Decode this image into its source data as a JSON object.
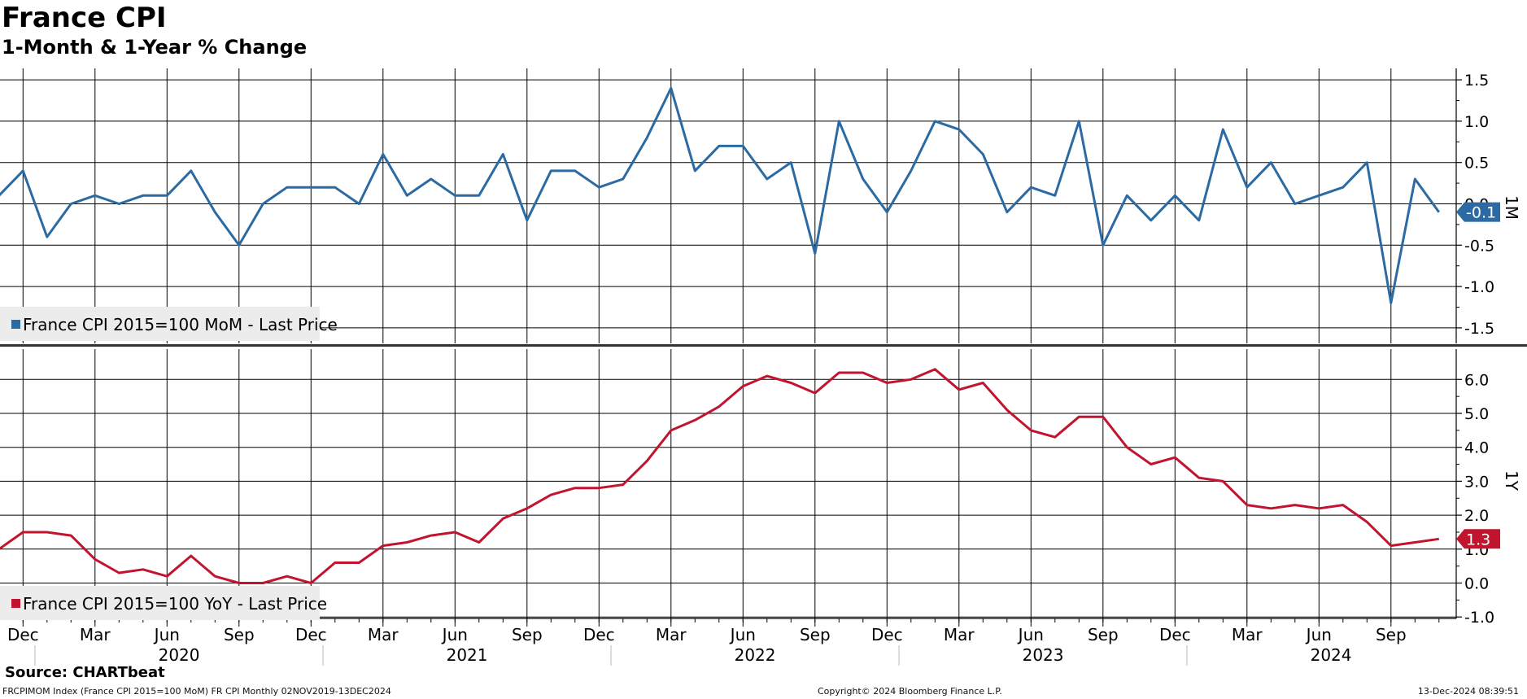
{
  "header": {
    "title": "France CPI",
    "subtitle": "1-Month & 1-Year % Change"
  },
  "footer": {
    "source": "Source: CHARTbeat",
    "ticker_info": "FRCPIMOM Index (France CPI 2015=100 MoM) FR CPI  Monthly 02NOV2019-13DEC2024",
    "copyright": "Copyright© 2024 Bloomberg Finance L.P.",
    "timestamp": "13-Dec-2024 08:39:51"
  },
  "colors": {
    "mom": "#2b6aa3",
    "yoy": "#c1152f"
  },
  "chart_data": [
    {
      "type": "line",
      "panel": "top",
      "axis_title": "1M",
      "ylim": [
        -1.75,
        1.75
      ],
      "yticks": [
        "1.5",
        "1.0",
        "0.5",
        "0.0",
        "-0.5",
        "-1.0",
        "-1.5"
      ],
      "last_value_label": "-0.1",
      "series": [
        {
          "name": "France CPI 2015=100 MoM - Last Price",
          "x": [
            "2019-11",
            "2019-12",
            "2020-01",
            "2020-02",
            "2020-03",
            "2020-04",
            "2020-05",
            "2020-06",
            "2020-07",
            "2020-08",
            "2020-09",
            "2020-10",
            "2020-11",
            "2020-12",
            "2021-01",
            "2021-02",
            "2021-03",
            "2021-04",
            "2021-05",
            "2021-06",
            "2021-07",
            "2021-08",
            "2021-09",
            "2021-10",
            "2021-11",
            "2021-12",
            "2022-01",
            "2022-02",
            "2022-03",
            "2022-04",
            "2022-05",
            "2022-06",
            "2022-07",
            "2022-08",
            "2022-09",
            "2022-10",
            "2022-11",
            "2022-12",
            "2023-01",
            "2023-02",
            "2023-03",
            "2023-04",
            "2023-05",
            "2023-06",
            "2023-07",
            "2023-08",
            "2023-09",
            "2023-10",
            "2023-11",
            "2023-12",
            "2024-01",
            "2024-02",
            "2024-03",
            "2024-04",
            "2024-05",
            "2024-06",
            "2024-07",
            "2024-08",
            "2024-09",
            "2024-10",
            "2024-11"
          ],
          "values": [
            0.1,
            0.4,
            -0.4,
            0.0,
            0.1,
            0.0,
            0.1,
            0.1,
            0.4,
            -0.1,
            -0.5,
            0.0,
            0.2,
            0.2,
            0.2,
            0.0,
            0.6,
            0.1,
            0.3,
            0.1,
            0.1,
            0.6,
            -0.2,
            0.4,
            0.4,
            0.2,
            0.3,
            0.8,
            1.4,
            0.4,
            0.7,
            0.7,
            0.3,
            0.5,
            -0.6,
            1.0,
            0.3,
            -0.1,
            0.4,
            1.0,
            0.9,
            0.6,
            -0.1,
            0.2,
            0.1,
            1.0,
            -0.5,
            0.1,
            -0.2,
            0.1,
            -0.2,
            0.9,
            0.2,
            0.5,
            0.0,
            0.1,
            0.2,
            0.5,
            -1.2,
            0.3,
            -0.1
          ]
        }
      ]
    },
    {
      "type": "line",
      "panel": "bottom",
      "axis_title": "1Y",
      "ylim": [
        -1.3,
        7.0
      ],
      "yticks": [
        "6.0",
        "5.0",
        "4.0",
        "3.0",
        "2.0",
        "1.0",
        "0.0",
        "-1.0"
      ],
      "last_value_label": "1.3",
      "series": [
        {
          "name": "France CPI 2015=100 YoY - Last Price",
          "x": [
            "2019-11",
            "2019-12",
            "2020-01",
            "2020-02",
            "2020-03",
            "2020-04",
            "2020-05",
            "2020-06",
            "2020-07",
            "2020-08",
            "2020-09",
            "2020-10",
            "2020-11",
            "2020-12",
            "2021-01",
            "2021-02",
            "2021-03",
            "2021-04",
            "2021-05",
            "2021-06",
            "2021-07",
            "2021-08",
            "2021-09",
            "2021-10",
            "2021-11",
            "2021-12",
            "2022-01",
            "2022-02",
            "2022-03",
            "2022-04",
            "2022-05",
            "2022-06",
            "2022-07",
            "2022-08",
            "2022-09",
            "2022-10",
            "2022-11",
            "2022-12",
            "2023-01",
            "2023-02",
            "2023-03",
            "2023-04",
            "2023-05",
            "2023-06",
            "2023-07",
            "2023-08",
            "2023-09",
            "2023-10",
            "2023-11",
            "2023-12",
            "2024-01",
            "2024-02",
            "2024-03",
            "2024-04",
            "2024-05",
            "2024-06",
            "2024-07",
            "2024-08",
            "2024-09",
            "2024-10",
            "2024-11"
          ],
          "values": [
            1.0,
            1.5,
            1.5,
            1.4,
            0.7,
            0.3,
            0.4,
            0.2,
            0.8,
            0.2,
            0.0,
            0.0,
            0.2,
            0.0,
            0.6,
            0.6,
            1.1,
            1.2,
            1.4,
            1.5,
            1.2,
            1.9,
            2.2,
            2.6,
            2.8,
            2.8,
            2.9,
            3.6,
            4.5,
            4.8,
            5.2,
            5.8,
            6.1,
            5.9,
            5.6,
            6.2,
            6.2,
            5.9,
            6.0,
            6.3,
            5.7,
            5.9,
            5.1,
            4.5,
            4.3,
            4.9,
            4.9,
            4.0,
            3.5,
            3.7,
            3.1,
            3.0,
            2.3,
            2.2,
            2.3,
            2.2,
            2.3,
            1.8,
            1.1,
            1.2,
            1.3
          ]
        }
      ]
    }
  ],
  "x_axis": {
    "months": [
      {
        "label": "Dec",
        "date": "2019-12"
      },
      {
        "label": "Mar",
        "date": "2020-03"
      },
      {
        "label": "Jun",
        "date": "2020-06"
      },
      {
        "label": "Sep",
        "date": "2020-09"
      },
      {
        "label": "Dec",
        "date": "2020-12"
      },
      {
        "label": "Mar",
        "date": "2021-03"
      },
      {
        "label": "Jun",
        "date": "2021-06"
      },
      {
        "label": "Sep",
        "date": "2021-09"
      },
      {
        "label": "Dec",
        "date": "2021-12"
      },
      {
        "label": "Mar",
        "date": "2022-03"
      },
      {
        "label": "Jun",
        "date": "2022-06"
      },
      {
        "label": "Sep",
        "date": "2022-09"
      },
      {
        "label": "Dec",
        "date": "2022-12"
      },
      {
        "label": "Mar",
        "date": "2023-03"
      },
      {
        "label": "Jun",
        "date": "2023-06"
      },
      {
        "label": "Sep",
        "date": "2023-09"
      },
      {
        "label": "Dec",
        "date": "2023-12"
      },
      {
        "label": "Mar",
        "date": "2024-03"
      },
      {
        "label": "Jun",
        "date": "2024-06"
      },
      {
        "label": "Sep",
        "date": "2024-09"
      }
    ],
    "years": [
      {
        "label": "2020",
        "date": "2020-07"
      },
      {
        "label": "2021",
        "date": "2021-07"
      },
      {
        "label": "2022",
        "date": "2022-07"
      },
      {
        "label": "2023",
        "date": "2023-07"
      },
      {
        "label": "2024",
        "date": "2024-07"
      }
    ],
    "year_dividers": [
      "2020-01",
      "2021-01",
      "2022-01",
      "2023-01",
      "2024-01"
    ],
    "range": [
      "2019-11",
      "2024-11"
    ]
  }
}
